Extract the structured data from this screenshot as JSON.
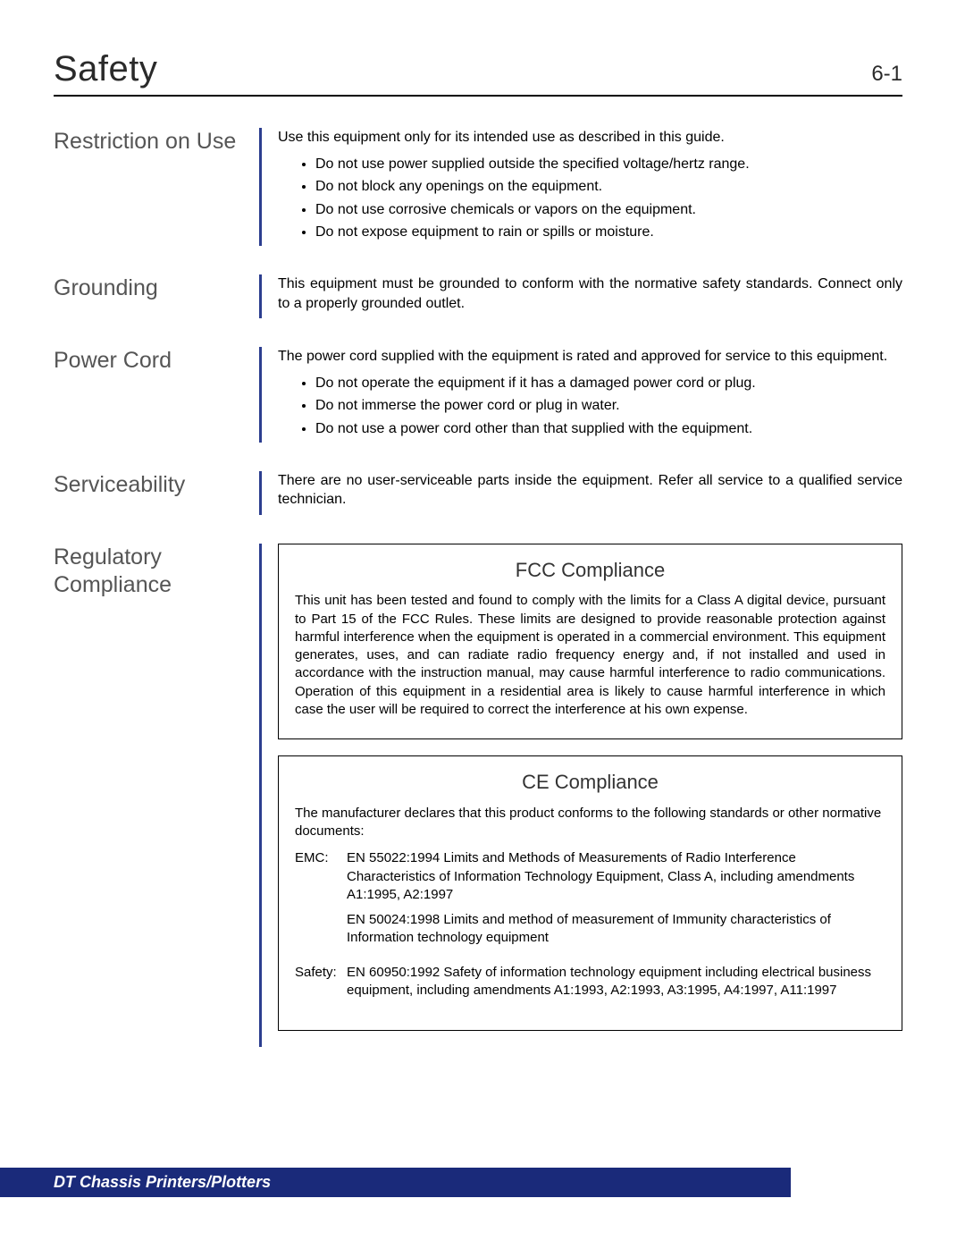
{
  "header": {
    "title": "Safety",
    "page": "6-1"
  },
  "sections": {
    "restriction": {
      "heading": "Restriction on Use",
      "intro": "Use this equipment only for its intended use as described in this guide.",
      "bullets": [
        "Do not use power supplied outside the specified voltage/hertz range.",
        "Do not block any openings on the equipment.",
        "Do not use corrosive chemicals or vapors on the equipment.",
        "Do not expose equipment to rain or spills or moisture."
      ]
    },
    "grounding": {
      "heading": "Grounding",
      "text": "This equipment must be grounded to conform with the normative safety standards. Connect only to a properly grounded outlet."
    },
    "powercord": {
      "heading": "Power Cord",
      "intro": "The power cord supplied with the equipment is rated and approved for service to this equipment.",
      "bullets": [
        "Do not operate the equipment if it has a damaged power cord or plug.",
        "Do not immerse the power cord or plug in water.",
        "Do not use a power cord other than that supplied with the equipment."
      ]
    },
    "serviceability": {
      "heading": "Serviceability",
      "text": "There are no user-serviceable parts inside the equipment. Refer all service to a qualified service technician."
    },
    "regulatory": {
      "heading": "Regulatory Compliance",
      "fcc": {
        "title": "FCC Compliance",
        "text": "This unit has been tested and found to comply with the limits for a Class A digital device, pursuant to Part 15 of the FCC Rules. These limits are designed to provide reasonable protection against harmful interference when the equipment is operated in a commercial environment. This equipment generates, uses, and can radiate radio frequency energy and, if not installed and used in accordance with the instruction manual, may cause harmful interference to radio communications. Operation of this equipment in a residential area is likely to cause harmful interference in which case the user will be required to correct the interference at his own expense."
      },
      "ce": {
        "title": "CE Compliance",
        "intro": "The manufacturer declares that this product conforms to the following standards or other normative documents:",
        "emc_label": "EMC:",
        "emc1": "EN 55022:1994 Limits and Methods of Measurements of Radio Interference Characteristics of Information Technology Equipment, Class A, including amendments A1:1995, A2:1997",
        "emc2": "EN 50024:1998 Limits and method of measurement of Immunity characteristics of Information technology equipment",
        "safety_label": "Safety:",
        "safety1": "EN 60950:1992 Safety of information technology equipment including electrical business equipment, including amendments A1:1993, A2:1993, A3:1995, A4:1997, A11:1997"
      }
    }
  },
  "footer": "DT Chassis Printers/Plotters",
  "colors": {
    "accent": "#2c3e8f",
    "footer_bg": "#1a2a7a",
    "heading_gray": "#555555"
  }
}
